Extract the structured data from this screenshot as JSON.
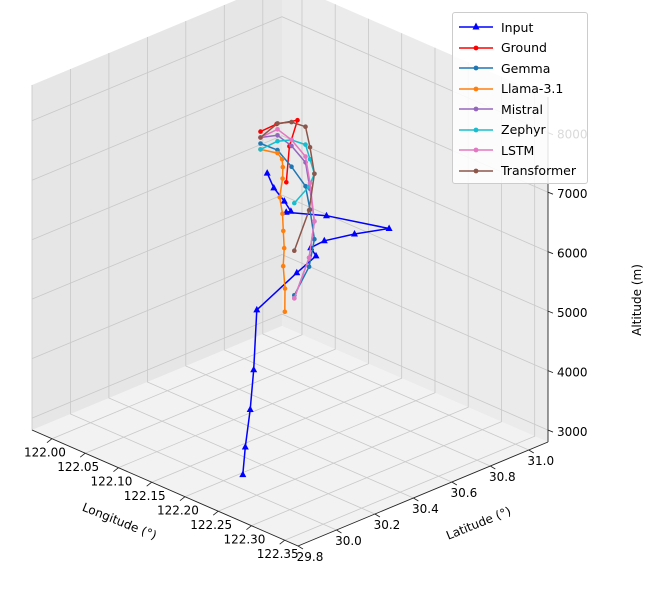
{
  "chart_data": {
    "type": "line3d",
    "title": "",
    "xlabel": "Longitude (°)",
    "ylabel": "Latitude (°)",
    "zlabel": "Altitude (m)",
    "x_ticks": [
      "122.00",
      "122.05",
      "122.10",
      "122.15",
      "122.20",
      "122.25",
      "122.30",
      "122.35"
    ],
    "y_ticks": [
      "29.8",
      "30.0",
      "30.2",
      "30.4",
      "30.6",
      "30.8",
      "31.0"
    ],
    "z_ticks": [
      "3000",
      "4000",
      "5000",
      "6000",
      "7000",
      "8000"
    ],
    "xlim": [
      121.97,
      122.37
    ],
    "ylim": [
      29.8,
      31.1
    ],
    "zlim": [
      2800,
      8600
    ],
    "grid": true,
    "legend_position": "top-right",
    "series": [
      {
        "name": "Input",
        "color": "#0000ff",
        "marker": "triangle",
        "x": [
          122.235,
          122.23,
          122.22,
          122.205,
          122.175,
          122.16,
          122.16,
          122.152,
          122.155,
          122.16,
          122.16,
          122.06,
          122.04,
          122.047,
          122.04,
          122.03,
          122.02
        ],
        "y": [
          29.98,
          30.01,
          30.07,
          30.14,
          30.26,
          30.52,
          30.62,
          30.62,
          30.68,
          30.82,
          31.0,
          31.02,
          30.88,
          30.88,
          30.87,
          30.85,
          30.85
        ],
        "z": [
          3100,
          3500,
          4000,
          4500,
          5200,
          5400,
          5550,
          5650,
          5700,
          5650,
          5500,
          5200,
          5350,
          5400,
          5550,
          5750,
          5950
        ]
      },
      {
        "name": "Ground",
        "color": "#ff0000",
        "marker": "circle",
        "x": [
          122.01,
          122.04,
          122.08,
          122.12,
          122.15
        ],
        "y": [
          30.85,
          30.83,
          30.8,
          30.62,
          30.5
        ],
        "z": [
          6600,
          6900,
          7200,
          7200,
          6900
        ]
      },
      {
        "name": "Gemma",
        "color": "#1f77b4",
        "marker": "circle",
        "x": [
          122.01,
          122.05,
          122.1,
          122.15,
          122.2,
          122.25,
          122.3,
          122.35
        ],
        "y": [
          30.85,
          30.8,
          30.7,
          30.6,
          30.45,
          30.3,
          30.1,
          29.85
        ],
        "z": [
          6400,
          6550,
          6650,
          6700,
          6750,
          6700,
          6750,
          6850
        ]
      },
      {
        "name": "Llama-3.1",
        "color": "#ff7f0e",
        "marker": "circle",
        "x": [
          122.01,
          122.05,
          122.08,
          122.11,
          122.13,
          122.14,
          122.15,
          122.16,
          122.17,
          122.18,
          122.2,
          122.22
        ],
        "y": [
          30.85,
          30.8,
          30.72,
          30.62,
          30.55,
          30.5,
          30.48,
          30.45,
          30.42,
          30.38,
          30.32,
          30.25
        ],
        "z": [
          6300,
          6500,
          6650,
          6800,
          6800,
          6600,
          6400,
          6200,
          6000,
          5800,
          5600,
          5400
        ]
      },
      {
        "name": "Mistral",
        "color": "#9467bd",
        "marker": "circle",
        "x": [
          122.01,
          122.05,
          122.1,
          122.15,
          122.2,
          122.25,
          122.3,
          122.35
        ],
        "y": [
          30.85,
          30.8,
          30.7,
          30.6,
          30.45,
          30.3,
          30.1,
          29.85
        ],
        "z": [
          6500,
          6800,
          7000,
          7100,
          7100,
          7000,
          6900,
          6800
        ]
      },
      {
        "name": "Zephyr",
        "color": "#17becf",
        "marker": "circle",
        "x": [
          122.01,
          122.05,
          122.1,
          122.15,
          122.2,
          122.25,
          122.3,
          122.35
        ],
        "y": [
          30.85,
          30.8,
          30.7,
          30.6,
          30.45,
          30.3,
          30.1,
          29.85
        ],
        "z": [
          6300,
          6700,
          7100,
          7400,
          7600,
          7800,
          8100,
          8400
        ]
      },
      {
        "name": "LSTM",
        "color": "#e377c2",
        "marker": "circle",
        "x": [
          122.01,
          122.05,
          122.1,
          122.15,
          122.2,
          122.25,
          122.3,
          122.35
        ],
        "y": [
          30.85,
          30.8,
          30.7,
          30.6,
          30.45,
          30.3,
          30.1,
          29.85
        ],
        "z": [
          6500,
          6900,
          7100,
          7200,
          7200,
          7000,
          6900,
          6800
        ]
      },
      {
        "name": "Transformer",
        "color": "#8c564b",
        "marker": "circle",
        "x": [
          122.01,
          122.05,
          122.1,
          122.15,
          122.2,
          122.25,
          122.3,
          122.35
        ],
        "y": [
          30.85,
          30.8,
          30.7,
          30.6,
          30.45,
          30.3,
          30.1,
          29.85
        ],
        "z": [
          6500,
          7000,
          7400,
          7700,
          7800,
          7800,
          7700,
          7600
        ]
      }
    ]
  }
}
